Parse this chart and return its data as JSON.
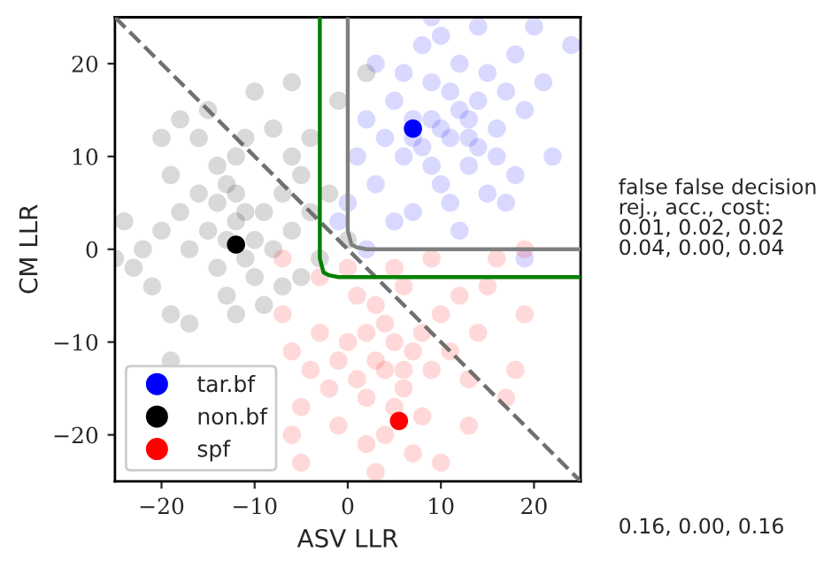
{
  "chart_data": {
    "type": "scatter",
    "xlabel": "ASV LLR",
    "ylabel": "CM LLR",
    "xlim": [
      -25,
      25
    ],
    "ylim": [
      -25,
      25
    ],
    "xticks": [
      {
        "value": -20,
        "label": "−20"
      },
      {
        "value": -10,
        "label": "−10"
      },
      0,
      10,
      20
    ],
    "yticks": [
      {
        "value": -20,
        "label": "−20"
      },
      {
        "value": -10,
        "label": "−10"
      },
      0,
      10,
      20
    ],
    "grid": false,
    "legend": "bottom left",
    "marker": "circle",
    "series": [
      {
        "name": "tar.bf",
        "color": "#0000ff",
        "x": [
          10,
          12,
          8,
          11,
          9,
          13,
          7,
          14,
          10,
          6,
          15,
          12,
          5,
          16,
          9,
          11,
          4,
          17,
          8,
          13,
          3,
          18,
          14,
          7,
          19,
          2,
          10,
          16,
          6,
          12,
          21,
          1,
          20,
          5,
          22,
          15,
          3,
          18,
          9,
          0,
          11,
          13,
          9,
          7,
          14,
          2,
          -1,
          19,
          24,
          17
        ],
        "values": [
          13,
          15,
          11,
          17,
          9,
          12,
          14,
          16,
          7,
          10,
          19,
          20,
          16,
          13,
          18,
          5,
          12,
          17,
          22,
          9,
          7,
          21,
          24,
          4,
          15,
          14,
          23,
          10,
          19,
          2,
          18,
          10,
          24,
          3,
          10,
          6,
          20,
          8,
          25,
          5,
          12,
          14,
          14,
          12,
          11,
          0,
          3,
          -1,
          22,
          5
        ]
      },
      {
        "name": "non.bf",
        "color": "#000000",
        "x": [
          -12,
          -14,
          -10,
          -13,
          -11,
          -15,
          -9,
          -16,
          -8,
          -12,
          -17,
          -10,
          -7,
          -14,
          -18,
          -6,
          -11,
          -20,
          -5,
          -13,
          -19,
          -8,
          -22,
          -4,
          -15,
          -9,
          -21,
          -3,
          -16,
          -6,
          -24,
          -12,
          -2,
          -10,
          -19,
          -18,
          -5,
          -23,
          -7,
          -4,
          -14,
          -25,
          -1,
          -6,
          -17,
          -20,
          -12,
          -11,
          -13,
          0,
          2,
          -19
        ],
        "values": [
          3,
          5,
          1,
          7,
          -1,
          2,
          4,
          6,
          0,
          10,
          0,
          -3,
          6,
          -2,
          4,
          2,
          12,
          2,
          8,
          -5,
          8,
          13,
          0,
          4,
          15,
          -6,
          -4,
          -1,
          12,
          10,
          3,
          -7,
          6,
          17,
          -7,
          14,
          -3,
          -2,
          -4,
          12,
          9,
          -1,
          16,
          18,
          -8,
          12,
          6,
          4,
          1,
          1,
          19,
          -12
        ]
      },
      {
        "name": "spf",
        "color": "#ff0000",
        "x": [
          3,
          5,
          1,
          4,
          2,
          6,
          0,
          7,
          -1,
          3,
          5,
          8,
          -2,
          1,
          9,
          4,
          -3,
          10,
          6,
          -4,
          2,
          11,
          -5,
          8,
          12,
          0,
          -6,
          13,
          7,
          -7,
          14,
          3,
          -6,
          15,
          10,
          -3,
          17,
          16,
          -5,
          19,
          19,
          5,
          2,
          4,
          6,
          -1,
          9,
          13,
          -7,
          18
        ],
        "values": [
          -12,
          -10,
          -14,
          -8,
          -16,
          -13,
          -10,
          -11,
          -12,
          -6,
          -17,
          -9,
          -15,
          -5,
          -13,
          -20,
          -9,
          -7,
          -4,
          -13,
          -21,
          -11,
          -17,
          -18,
          -5,
          -2,
          -11,
          -14,
          -22,
          -7,
          -9,
          -24,
          -20,
          -4,
          -23,
          -3,
          -16,
          -1,
          -23,
          -7,
          0,
          -2,
          -9,
          -13,
          -15,
          -19,
          -1,
          -19,
          -1,
          -13
        ]
      },
      {
        "color": "#0000ff",
        "x": [
          7
        ],
        "values": [
          13
        ]
      },
      {
        "color": "#000000",
        "x": [
          -12
        ],
        "values": [
          0.5
        ]
      },
      {
        "color": "#ff0000",
        "x": [
          5.5
        ],
        "values": [
          -18.5
        ]
      },
      {
        "color": "#707070",
        "type": "line",
        "line_style": "dashed",
        "marker": "none",
        "x": [
          -25,
          25
        ],
        "values": [
          25,
          -25
        ]
      },
      {
        "color": "#808080",
        "type": "line",
        "line_style": "solid",
        "marker": "none",
        "x": [
          0,
          0,
          0.4,
          1,
          2,
          25
        ],
        "values": [
          25,
          2,
          0.5,
          0.2,
          0,
          0
        ]
      },
      {
        "color": "#008000",
        "type": "line",
        "line_style": "solid",
        "marker": "none",
        "x": [
          -3,
          -3,
          -2.6,
          -2,
          -1,
          25
        ],
        "values": [
          25,
          -1,
          -2.5,
          -2.8,
          -3,
          -3
        ]
      }
    ],
    "annotations": [
      "false false decision\nrej., acc., cost:\n0.01, 0.02, 0.02\n0.04, 0.00, 0.04",
      "0.16, 0.00, 0.16"
    ]
  }
}
